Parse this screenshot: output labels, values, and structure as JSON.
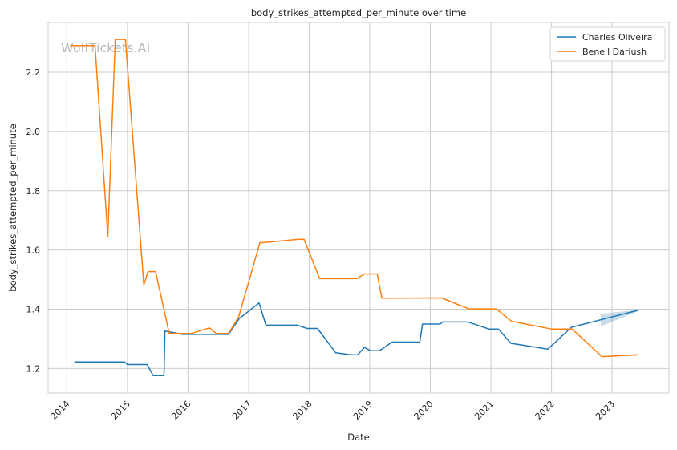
{
  "watermark": "WolfTickets.AI",
  "chart_data": {
    "type": "line",
    "title": "body_strikes_attempted_per_minute over time",
    "xlabel": "Date",
    "ylabel": "body_strikes_attempted_per_minute",
    "x_ticks": [
      "2014",
      "2015",
      "2016",
      "2017",
      "2018",
      "2019",
      "2020",
      "2021",
      "2022",
      "2023"
    ],
    "y_ticks": [
      "1.2",
      "1.4",
      "1.6",
      "1.8",
      "2.0",
      "2.2"
    ],
    "xlim": [
      "2013-09-10",
      "2023-12-10"
    ],
    "ylim": [
      1.117,
      2.368
    ],
    "grid": true,
    "legend_position": "top-right",
    "colors": {
      "Charles Oliveira": "#1f77b4",
      "Beneil Dariush": "#ff7f0e"
    },
    "series": [
      {
        "name": "Charles Oliveira",
        "color": "#1f77b4",
        "points": [
          [
            "2014-02-15",
            1.222
          ],
          [
            "2014-12-15",
            1.222
          ],
          [
            "2015-01-01",
            1.213
          ],
          [
            "2015-04-30",
            1.213
          ],
          [
            "2015-06-05",
            1.176
          ],
          [
            "2015-08-10",
            1.176
          ],
          [
            "2015-08-15",
            1.326
          ],
          [
            "2015-12-01",
            1.315
          ],
          [
            "2016-09-01",
            1.315
          ],
          [
            "2016-11-05",
            1.368
          ],
          [
            "2017-03-05",
            1.421
          ],
          [
            "2017-04-15",
            1.346
          ],
          [
            "2017-10-20",
            1.346
          ],
          [
            "2017-12-20",
            1.335
          ],
          [
            "2018-02-20",
            1.335
          ],
          [
            "2018-06-10",
            1.253
          ],
          [
            "2018-09-10",
            1.246
          ],
          [
            "2018-10-20",
            1.246
          ],
          [
            "2018-11-30",
            1.271
          ],
          [
            "2019-01-05",
            1.26
          ],
          [
            "2019-03-01",
            1.26
          ],
          [
            "2019-05-15",
            1.289
          ],
          [
            "2019-10-30",
            1.289
          ],
          [
            "2019-11-15",
            1.35
          ],
          [
            "2020-03-01",
            1.35
          ],
          [
            "2020-03-15",
            1.357
          ],
          [
            "2020-08-15",
            1.357
          ],
          [
            "2020-12-20",
            1.333
          ],
          [
            "2021-02-15",
            1.333
          ],
          [
            "2021-05-01",
            1.285
          ],
          [
            "2021-12-10",
            1.265
          ],
          [
            "2022-05-01",
            1.339
          ],
          [
            "2023-06-05",
            1.396
          ]
        ],
        "confidence_band": [
          [
            "2022-10-25",
            1.342,
            1.384
          ],
          [
            "2023-06-05",
            1.393,
            1.398
          ]
        ]
      },
      {
        "name": "Beneil Dariush",
        "color": "#ff7f0e",
        "points": [
          [
            "2014-01-20",
            2.29
          ],
          [
            "2014-05-20",
            2.29
          ],
          [
            "2014-06-20",
            2.29
          ],
          [
            "2014-09-05",
            1.645
          ],
          [
            "2014-10-20",
            2.311
          ],
          [
            "2014-12-20",
            2.311
          ],
          [
            "2015-04-10",
            1.482
          ],
          [
            "2015-05-05",
            1.527
          ],
          [
            "2015-06-20",
            1.527
          ],
          [
            "2015-09-10",
            1.318
          ],
          [
            "2016-01-20",
            1.318
          ],
          [
            "2016-05-10",
            1.337
          ],
          [
            "2016-06-20",
            1.318
          ],
          [
            "2016-09-01",
            1.318
          ],
          [
            "2016-11-01",
            1.373
          ],
          [
            "2017-03-10",
            1.625
          ],
          [
            "2017-03-30",
            1.625
          ],
          [
            "2017-10-30",
            1.636
          ],
          [
            "2017-12-01",
            1.636
          ],
          [
            "2018-03-05",
            1.503
          ],
          [
            "2018-10-15",
            1.503
          ],
          [
            "2018-11-30",
            1.519
          ],
          [
            "2019-02-15",
            1.519
          ],
          [
            "2019-03-15",
            1.437
          ],
          [
            "2020-03-10",
            1.438
          ],
          [
            "2020-08-20",
            1.401
          ],
          [
            "2021-02-01",
            1.401
          ],
          [
            "2021-05-05",
            1.359
          ],
          [
            "2022-01-01",
            1.333
          ],
          [
            "2022-05-05",
            1.333
          ],
          [
            "2022-11-01",
            1.24
          ],
          [
            "2023-06-05",
            1.246
          ]
        ],
        "confidence_band": [
          [
            "2022-10-25",
            1.24,
            1.241
          ],
          [
            "2023-06-05",
            1.243,
            1.249
          ]
        ]
      }
    ]
  }
}
